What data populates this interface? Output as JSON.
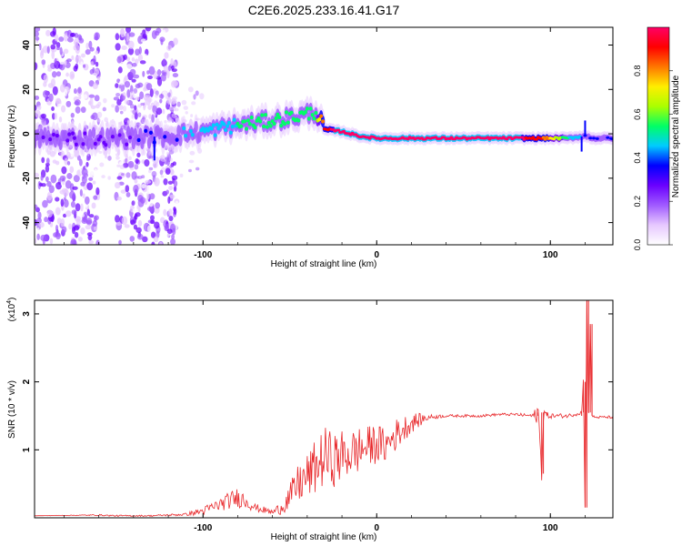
{
  "title": "C2E6.2025.233.16.41.G17",
  "chart_data": [
    {
      "type": "heatmap",
      "xlabel": "Height of straight line (km)",
      "ylabel": "Frequency (Hz)",
      "xlim": [
        -197,
        136
      ],
      "ylim": [
        -50,
        48
      ],
      "xticks": [
        -100,
        0,
        100
      ],
      "yticks": [
        -40,
        -20,
        0,
        20,
        40
      ],
      "ridge": {
        "x": [
          -197,
          -150,
          -120,
          -100,
          -80,
          -60,
          -45,
          -35,
          -30,
          -20,
          -10,
          0,
          20,
          50,
          80,
          95,
          110,
          120,
          125,
          136
        ],
        "y": [
          -2,
          -2,
          -1,
          1,
          4,
          6,
          8,
          10,
          2,
          1,
          -1,
          -2,
          -2,
          -2,
          -2,
          -2,
          -2,
          -1,
          -2,
          -2
        ],
        "amplitude": [
          0.3,
          0.3,
          0.4,
          0.45,
          0.5,
          0.5,
          0.5,
          0.55,
          0.9,
          0.95,
          0.95,
          0.95,
          0.95,
          0.95,
          0.95,
          0.85,
          0.5,
          0.4,
          0.4,
          0.4
        ]
      },
      "noise_regions": [
        [
          -197,
          -160
        ],
        [
          -150,
          -115
        ]
      ],
      "colorbar": {
        "label": "Normalized spectral amplitude",
        "ticks": [
          0.0,
          0.2,
          0.4,
          0.6,
          0.8
        ],
        "range": [
          0,
          1
        ],
        "colors": [
          "#ffffff",
          "#e6c8ff",
          "#a05aff",
          "#6a00ff",
          "#0000ff",
          "#00ccff",
          "#00ff66",
          "#aaff00",
          "#ffee00",
          "#ff7700",
          "#ff0000",
          "#ff0066"
        ]
      }
    },
    {
      "type": "line",
      "xlabel": "Height of straight line (km)",
      "ylabel": "SNR (10 * v/v)",
      "scale_label": "(x10",
      "scale_exp": "4",
      "scale_close": ")",
      "xlim": [
        -197,
        136
      ],
      "ylim": [
        0,
        3.2
      ],
      "xticks": [
        -100,
        0,
        100
      ],
      "yticks": [
        1,
        2,
        3
      ],
      "series": [
        {
          "name": "SNR",
          "color": "#e8282b",
          "x": [
            -197,
            -160,
            -150,
            -130,
            -110,
            -100,
            -90,
            -80,
            -75,
            -70,
            -60,
            -55,
            -50,
            -45,
            -40,
            -35,
            -30,
            -25,
            -20,
            -15,
            -10,
            -5,
            0,
            5,
            10,
            15,
            20,
            30,
            40,
            50,
            60,
            70,
            80,
            90,
            93,
            95,
            96,
            98,
            110,
            118,
            119,
            120,
            121,
            122,
            123,
            124,
            126,
            130,
            136
          ],
          "y": [
            0.03,
            0.04,
            0.03,
            0.03,
            0.05,
            0.1,
            0.2,
            0.3,
            0.25,
            0.15,
            0.08,
            0.15,
            0.3,
            0.5,
            0.6,
            0.75,
            0.9,
            0.85,
            0.9,
            0.95,
            1.0,
            1.05,
            1.1,
            1.05,
            1.2,
            1.3,
            1.4,
            1.48,
            1.5,
            1.5,
            1.5,
            1.52,
            1.52,
            1.5,
            1.55,
            0.65,
            1.55,
            1.5,
            1.5,
            1.55,
            2.0,
            0.15,
            3.2,
            1.55,
            2.85,
            1.5,
            1.48,
            1.48,
            1.48
          ],
          "noise": [
            0,
            0.01,
            0.01,
            0.01,
            0.02,
            0.06,
            0.1,
            0.15,
            0.12,
            0.06,
            0.04,
            0.1,
            0.2,
            0.3,
            0.35,
            0.4,
            0.45,
            0.4,
            0.4,
            0.35,
            0.35,
            0.3,
            0.3,
            0.25,
            0.25,
            0.2,
            0.15,
            0.04,
            0.02,
            0.02,
            0.02,
            0.02,
            0.02,
            0.03,
            0.2,
            0.1,
            0.2,
            0.04,
            0.03,
            0.03,
            0.05,
            0.02,
            0.05,
            0.02,
            0.05,
            0.02,
            0.02,
            0.02,
            0.02
          ]
        }
      ]
    }
  ]
}
